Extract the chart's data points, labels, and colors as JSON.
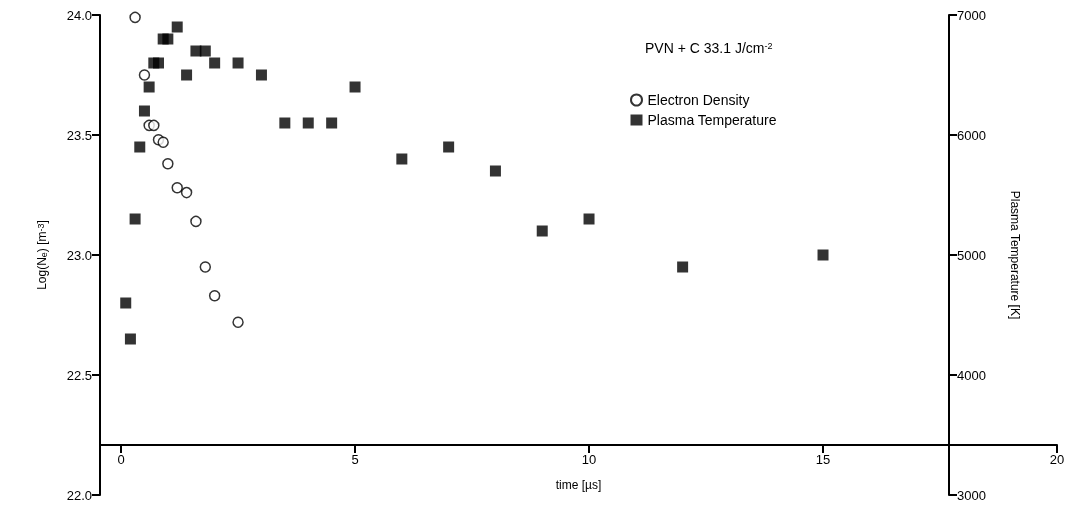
{
  "chart_data": {
    "type": "scatter",
    "title": "PVN + C 33.1 J/cm$^{-2}$",
    "xlabel": "time [µs]",
    "ylabel": "Log(N$_{e}$) [m$^{-3}$]",
    "y2label": "Plasma Temperature [K]",
    "xlim": [
      -0.45,
      20
    ],
    "xticks": [
      0,
      5,
      10,
      15,
      20
    ],
    "ylim": [
      22,
      24
    ],
    "yticks": [
      {
        "value": 22,
        "label": "22.0"
      },
      22.5,
      {
        "value": 23,
        "label": "23.0"
      },
      23.5,
      {
        "value": 24,
        "label": "24.0"
      }
    ],
    "y2lim": [
      3000,
      7000
    ],
    "y2ticks": [
      3000,
      4000,
      5000,
      6000,
      7000
    ],
    "grid": false,
    "legend": "top right",
    "series": [
      {
        "name": "Electron Density",
        "color": "#000000",
        "marker": "circle",
        "x": [
          0.3,
          0.5,
          0.6,
          0.7,
          0.8,
          0.9,
          1.0,
          1.2,
          1.4,
          1.6,
          1.8,
          2.0,
          2.5
        ],
        "values": [
          23.99,
          23.75,
          23.54,
          23.54,
          23.48,
          23.47,
          23.38,
          23.28,
          23.26,
          23.14,
          22.95,
          22.83,
          22.72
        ]
      },
      {
        "name": "Plasma Temperature",
        "color": "#000000",
        "marker": "square",
        "axis": "y2",
        "x": [
          0.1,
          0.2,
          0.3,
          0.4,
          0.5,
          0.6,
          0.7,
          0.8,
          0.9,
          1.0,
          1.2,
          1.4,
          1.6,
          1.8,
          2.0,
          2.5,
          3.0,
          3.5,
          4.0,
          4.5,
          5.0,
          6.0,
          7.0,
          8.0,
          9.0,
          10.0,
          12.0,
          15.0
        ],
        "values": [
          4600,
          4300,
          5300,
          5900,
          6200,
          6400,
          6600,
          6600,
          6800,
          6800,
          6900,
          6500,
          6700,
          6700,
          6600,
          6600,
          6500,
          6100,
          6100,
          6100,
          6400,
          5800,
          5900,
          5700,
          5200,
          5300,
          4900,
          5000
        ]
      }
    ]
  }
}
